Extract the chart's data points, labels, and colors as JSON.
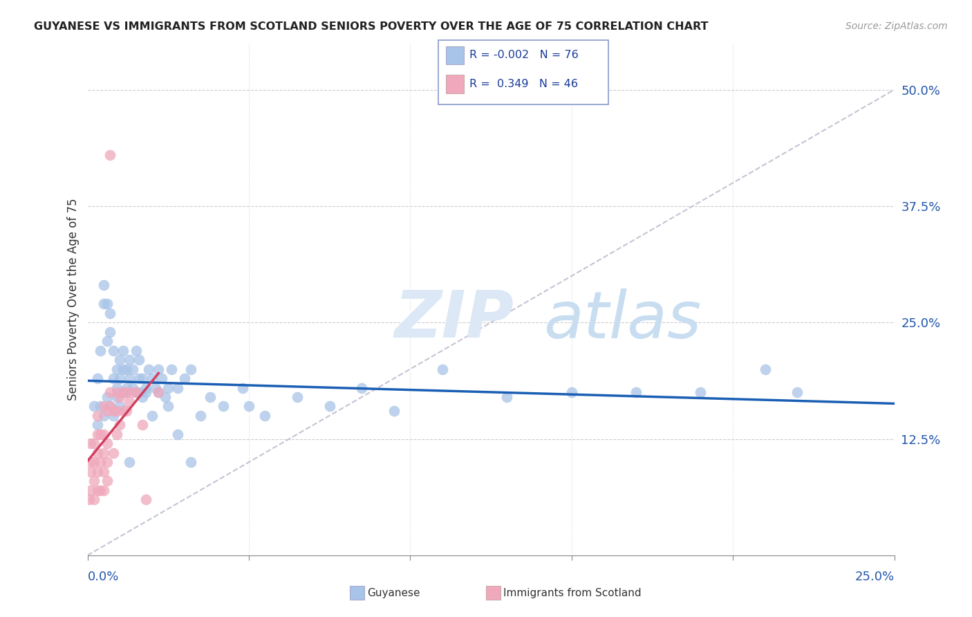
{
  "title": "GUYANESE VS IMMIGRANTS FROM SCOTLAND SENIORS POVERTY OVER THE AGE OF 75 CORRELATION CHART",
  "source": "Source: ZipAtlas.com",
  "ylabel": "Seniors Poverty Over the Age of 75",
  "ytick_vals": [
    0.125,
    0.25,
    0.375,
    0.5
  ],
  "ytick_labels": [
    "12.5%",
    "25.0%",
    "37.5%",
    "50.0%"
  ],
  "xlim": [
    0.0,
    0.25
  ],
  "ylim": [
    0.0,
    0.55
  ],
  "legend_blue_r": "-0.002",
  "legend_blue_n": "76",
  "legend_pink_r": "0.349",
  "legend_pink_n": "46",
  "legend_label_blue": "Guyanese",
  "legend_label_pink": "Immigrants from Scotland",
  "blue_color": "#a8c4e8",
  "pink_color": "#f0a8bc",
  "trend_blue_color": "#1a5fb4",
  "trend_pink_color": "#d04060",
  "diagonal_color": "#c8c8d8",
  "grid_color": "#cccccc",
  "blue_trend_y_intercept": 0.178,
  "blue_trend_slope": -0.05,
  "pink_trend_slope": 9.5,
  "pink_trend_intercept": 0.04,
  "blue_scatter_x": [
    0.002,
    0.003,
    0.004,
    0.005,
    0.005,
    0.006,
    0.006,
    0.007,
    0.007,
    0.008,
    0.008,
    0.009,
    0.009,
    0.01,
    0.01,
    0.011,
    0.011,
    0.012,
    0.012,
    0.013,
    0.013,
    0.014,
    0.014,
    0.015,
    0.016,
    0.016,
    0.017,
    0.017,
    0.018,
    0.019,
    0.02,
    0.021,
    0.022,
    0.023,
    0.024,
    0.025,
    0.026,
    0.028,
    0.03,
    0.032,
    0.035,
    0.038,
    0.042,
    0.048,
    0.055,
    0.065,
    0.075,
    0.085,
    0.095,
    0.11,
    0.13,
    0.15,
    0.17,
    0.19,
    0.21,
    0.22,
    0.003,
    0.004,
    0.005,
    0.006,
    0.007,
    0.008,
    0.009,
    0.01,
    0.011,
    0.012,
    0.013,
    0.015,
    0.016,
    0.018,
    0.02,
    0.022,
    0.025,
    0.028,
    0.032,
    0.05
  ],
  "blue_scatter_y": [
    0.16,
    0.19,
    0.22,
    0.27,
    0.29,
    0.27,
    0.23,
    0.26,
    0.24,
    0.22,
    0.19,
    0.2,
    0.18,
    0.21,
    0.19,
    0.2,
    0.22,
    0.18,
    0.2,
    0.19,
    0.21,
    0.18,
    0.2,
    0.22,
    0.19,
    0.21,
    0.17,
    0.19,
    0.18,
    0.2,
    0.19,
    0.18,
    0.2,
    0.19,
    0.17,
    0.18,
    0.2,
    0.18,
    0.19,
    0.2,
    0.15,
    0.17,
    0.16,
    0.18,
    0.15,
    0.17,
    0.16,
    0.18,
    0.155,
    0.2,
    0.17,
    0.175,
    0.175,
    0.175,
    0.2,
    0.175,
    0.14,
    0.16,
    0.15,
    0.17,
    0.16,
    0.15,
    0.17,
    0.16,
    0.175,
    0.175,
    0.1,
    0.175,
    0.175,
    0.175,
    0.15,
    0.175,
    0.16,
    0.13,
    0.1,
    0.16
  ],
  "pink_scatter_x": [
    0.0005,
    0.001,
    0.001,
    0.001,
    0.001,
    0.002,
    0.002,
    0.002,
    0.002,
    0.003,
    0.003,
    0.003,
    0.003,
    0.003,
    0.004,
    0.004,
    0.004,
    0.005,
    0.005,
    0.005,
    0.005,
    0.005,
    0.006,
    0.006,
    0.006,
    0.006,
    0.007,
    0.007,
    0.007,
    0.008,
    0.008,
    0.009,
    0.009,
    0.009,
    0.01,
    0.01,
    0.011,
    0.011,
    0.012,
    0.012,
    0.013,
    0.014,
    0.015,
    0.017,
    0.018,
    0.022
  ],
  "pink_scatter_y": [
    0.06,
    0.07,
    0.09,
    0.1,
    0.12,
    0.06,
    0.08,
    0.1,
    0.12,
    0.07,
    0.09,
    0.11,
    0.13,
    0.15,
    0.07,
    0.1,
    0.13,
    0.07,
    0.09,
    0.11,
    0.13,
    0.16,
    0.08,
    0.1,
    0.12,
    0.155,
    0.43,
    0.16,
    0.175,
    0.11,
    0.155,
    0.13,
    0.155,
    0.175,
    0.14,
    0.17,
    0.155,
    0.175,
    0.155,
    0.175,
    0.165,
    0.175,
    0.175,
    0.14,
    0.06,
    0.175
  ]
}
